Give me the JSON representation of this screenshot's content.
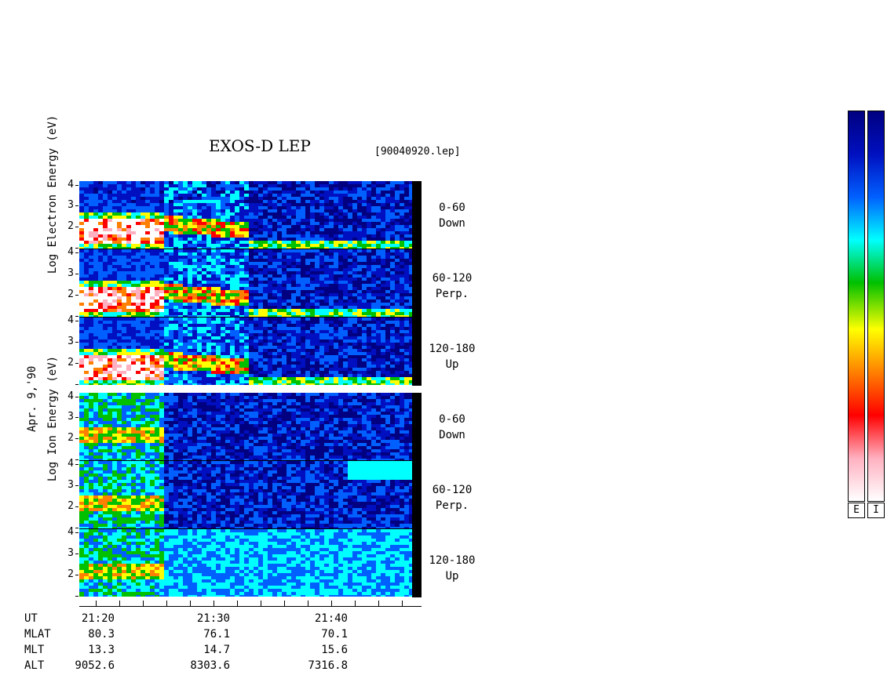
{
  "chart_data": {
    "type": "heatmap",
    "title": "EXOS-D LEP",
    "file_label": "[90040920.lep]",
    "date_label": "Apr. 9,'90",
    "groups": [
      {
        "name": "Log Electron Energy (eV)",
        "ylabel_lines": [
          "Log",
          "Electron",
          "Energy",
          "(eV)"
        ],
        "panels": [
          {
            "label_lines": [
              "0-60",
              "Down"
            ],
            "yticks": [
              "4",
              "3",
              "2"
            ]
          },
          {
            "label_lines": [
              "60-120",
              "Perp."
            ],
            "yticks": [
              "4",
              "3",
              "2"
            ]
          },
          {
            "label_lines": [
              "120-180",
              "Up"
            ],
            "yticks": [
              "4",
              "3",
              "2"
            ]
          }
        ]
      },
      {
        "name": "Log Ion Energy (eV)",
        "ylabel_lines": [
          "Log",
          "Ion",
          "Energy",
          "(eV)"
        ],
        "panels": [
          {
            "label_lines": [
              "0-60",
              "Down"
            ],
            "yticks": [
              "4",
              "3",
              "2"
            ]
          },
          {
            "label_lines": [
              "60-120",
              "Perp."
            ],
            "yticks": [
              "4",
              "3",
              "2"
            ]
          },
          {
            "label_lines": [
              "120-180",
              "Up"
            ],
            "yticks": [
              "4",
              "3",
              "2"
            ]
          }
        ]
      }
    ],
    "ylim": [
      1,
      4.2
    ],
    "xaxis": {
      "row_labels": [
        "UT",
        "MLAT",
        "MLT",
        "ALT"
      ],
      "columns": [
        {
          "UT": "21:20",
          "MLAT": "80.3",
          "MLT": "13.3",
          "ALT": "9052.6"
        },
        {
          "UT": "21:30",
          "MLAT": "76.1",
          "MLT": "14.7",
          "ALT": "8303.6"
        },
        {
          "UT": "21:40",
          "MLAT": "70.1",
          "MLT": "15.6",
          "ALT": "7316.8"
        }
      ]
    },
    "colorbars": [
      {
        "label": "E"
      },
      {
        "label": "I"
      }
    ],
    "colorscale": [
      "#ffffff",
      "#ffb0c0",
      "#ff0000",
      "#ff8000",
      "#ffff00",
      "#00c000",
      "#00ffff",
      "#0060ff",
      "#0010c0",
      "#000080"
    ]
  }
}
